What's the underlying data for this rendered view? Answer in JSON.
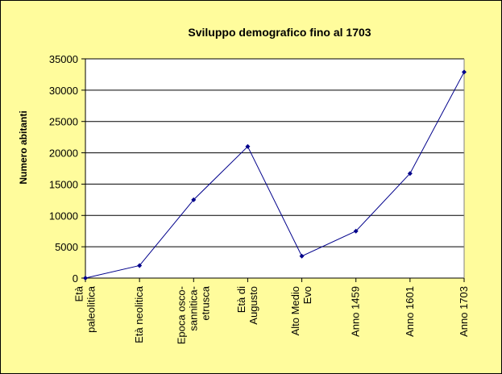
{
  "colors": {
    "chart_area": "#fffc9c",
    "plot_area": "#ffffff",
    "series": "#00008b",
    "gridline": "#000000"
  },
  "chart_data": {
    "type": "line",
    "title": "Sviluppo demografico fino al 1703",
    "ylabel": "Numero abitanti",
    "xlabel": "",
    "categories": [
      [
        "Età",
        "paleolitica"
      ],
      [
        "Età neolitica"
      ],
      [
        "Epoca osco-",
        "sannitica-",
        "etrusca"
      ],
      [
        "Età di",
        "Augusto"
      ],
      [
        "Alto Medio",
        "Evo"
      ],
      [
        "Anno 1459"
      ],
      [
        "Anno 1601"
      ],
      [
        "Anno 1703"
      ]
    ],
    "series": [
      {
        "values": [
          0,
          2000,
          12500,
          21000,
          3500,
          7500,
          16700,
          32900
        ]
      }
    ],
    "ylim": [
      0,
      35000
    ],
    "yticks": [
      0,
      5000,
      10000,
      15000,
      20000,
      25000,
      30000,
      35000
    ],
    "grid": true,
    "legend": "none"
  }
}
